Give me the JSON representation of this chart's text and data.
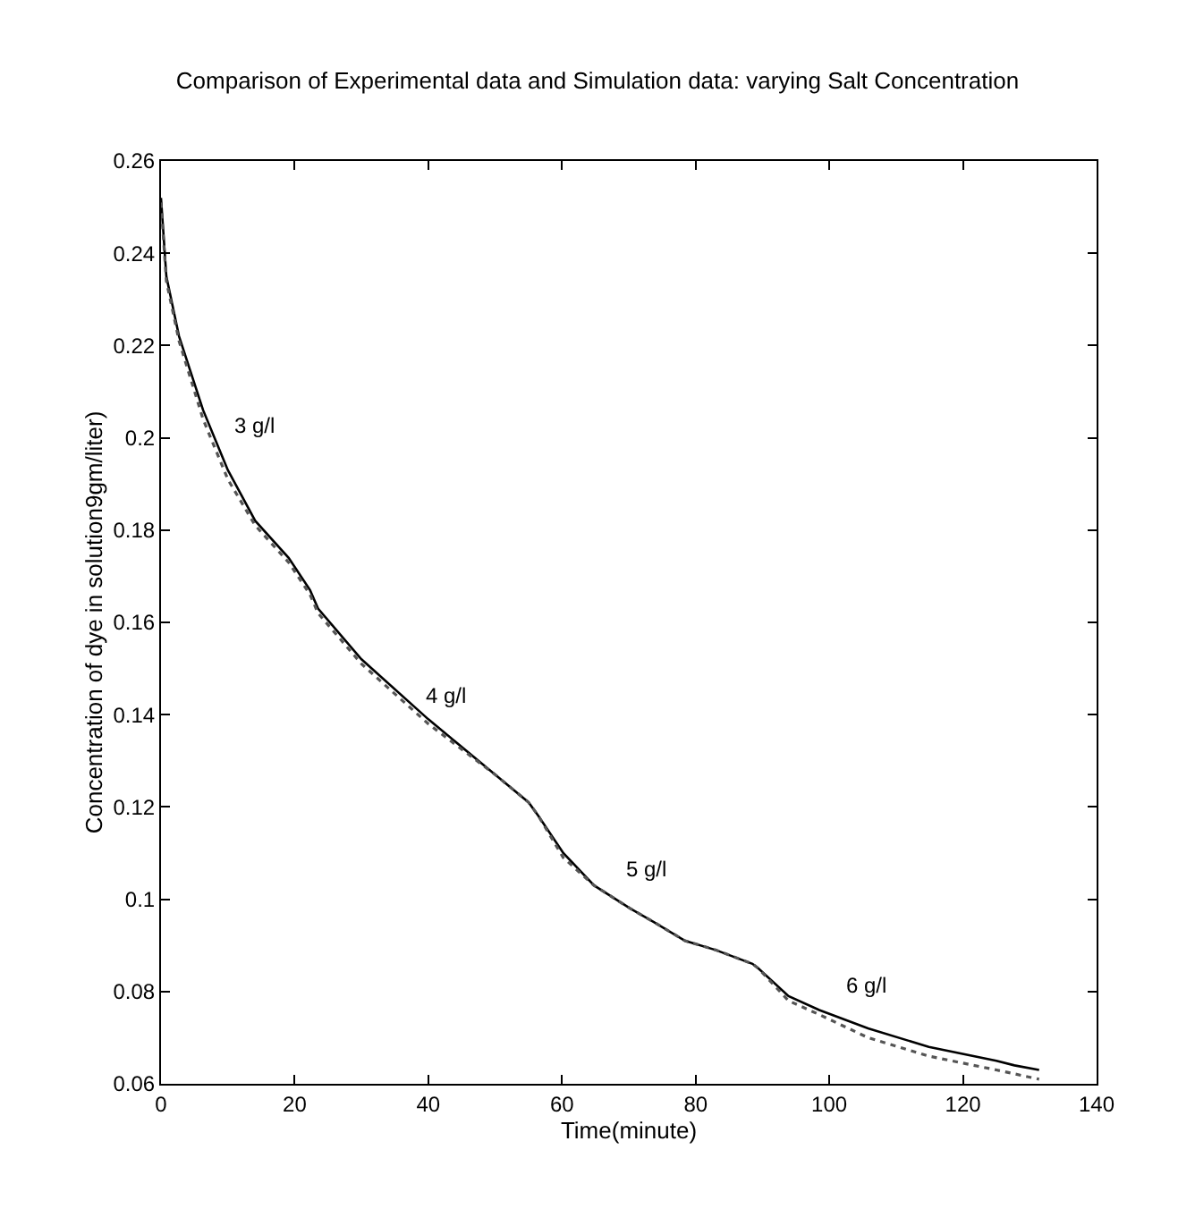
{
  "chart_data": {
    "type": "line",
    "title": "Comparison of Experimental data and Simulation data: varying Salt Concentration",
    "xlabel": "Time(minute)",
    "ylabel": "Concentration of dye in solution9gm/liter)",
    "xlim": [
      0,
      140
    ],
    "xticks": [
      0,
      20,
      40,
      60,
      80,
      100,
      120,
      140
    ],
    "ylim": [
      0.06,
      0.26
    ],
    "yticks": [
      0.06,
      0.08,
      0.1,
      0.12,
      0.14,
      0.16,
      0.18,
      0.2,
      0.22,
      0.24,
      0.26
    ],
    "grid": false,
    "marker": "none",
    "series": [
      {
        "color": "#000000",
        "line_style": "solid",
        "x": [
          0,
          0.8,
          2.7,
          6.3,
          10,
          14.1,
          19.1,
          22.3,
          23.5,
          30,
          40,
          50,
          55,
          56.5,
          60.2,
          64.8,
          70.2,
          73.8,
          78.4,
          83,
          88.5,
          89.4,
          93.9,
          98.5,
          105.8,
          114.9,
          125,
          127.7,
          131.4
        ],
        "values": [
          0.252,
          0.235,
          0.222,
          0.206,
          0.193,
          0.182,
          0.174,
          0.167,
          0.163,
          0.152,
          0.139,
          0.127,
          0.121,
          0.118,
          0.11,
          0.103,
          0.098,
          0.095,
          0.091,
          0.089,
          0.086,
          0.085,
          0.079,
          0.076,
          0.072,
          0.068,
          0.065,
          0.064,
          0.063
        ]
      },
      {
        "color": "#555555",
        "line_style": "dotted",
        "x": [
          0,
          0.8,
          2.7,
          6.3,
          10,
          14.1,
          19.1,
          22.3,
          23.5,
          30,
          40,
          50,
          55,
          56.5,
          60.2,
          64.8,
          70.2,
          73.8,
          78.4,
          83,
          88.5,
          89.4,
          93.9,
          98.5,
          105.8,
          114.9,
          125,
          131.4
        ],
        "values": [
          0.251,
          0.234,
          0.221,
          0.204,
          0.191,
          0.181,
          0.173,
          0.166,
          0.162,
          0.151,
          0.138,
          0.127,
          0.121,
          0.118,
          0.109,
          0.103,
          0.098,
          0.095,
          0.091,
          0.089,
          0.086,
          0.085,
          0.078,
          0.075,
          0.07,
          0.066,
          0.063,
          0.061
        ]
      }
    ],
    "annotations": [
      "3 g/l",
      "4 g/l",
      "5 g/l",
      "6 g/l"
    ]
  }
}
